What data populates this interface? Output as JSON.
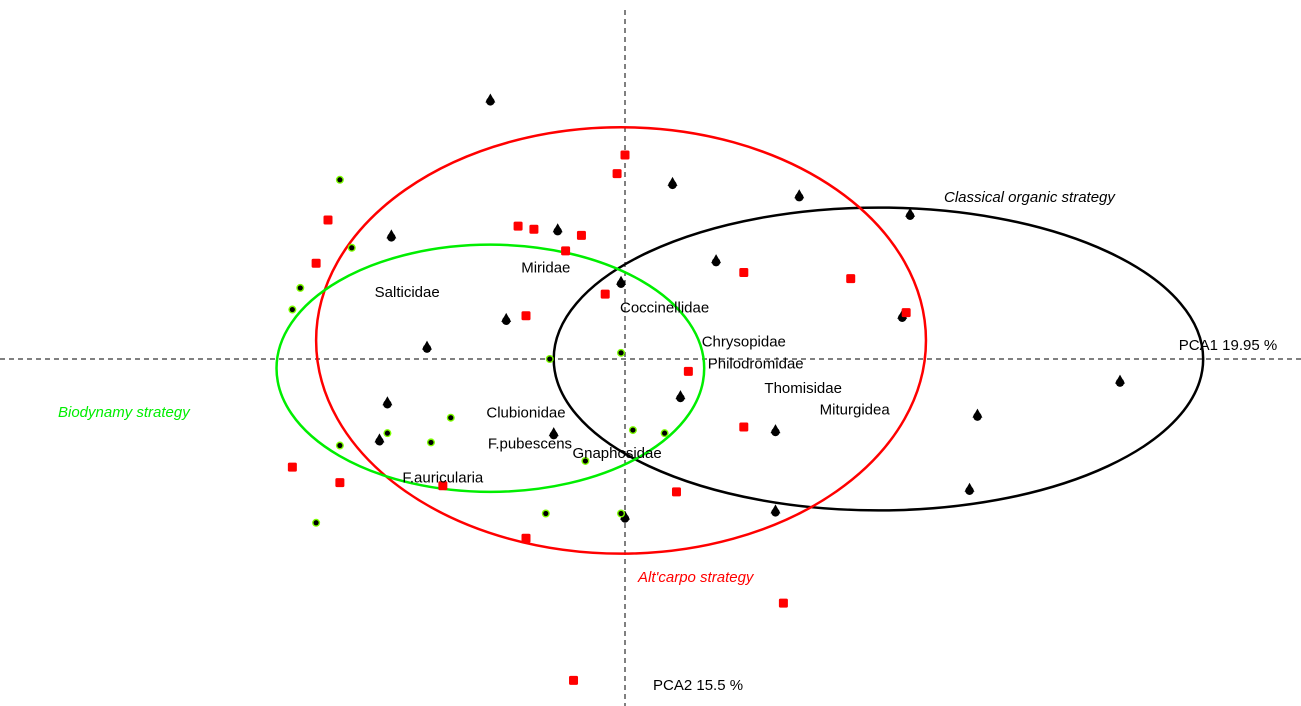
{
  "chart_data": {
    "type": "scatter",
    "title": "",
    "xlabel": "PCA1 19.95 %",
    "ylabel": "PCA2 15.5 %",
    "xlim": [
      -1.4,
      1.45
    ],
    "ylim": [
      -1.2,
      1.35
    ],
    "grid": false,
    "legend": "none",
    "colors": {
      "classical": "#000000",
      "altcarpo": "#ff0000",
      "biodynamy": "#00ee00"
    },
    "groups": [
      {
        "name": "Classical organic strategy",
        "marker": "triangle",
        "color": "#000000",
        "ellipse": {
          "cx": 0.64,
          "cy": 0.0,
          "rx": 0.82,
          "ry": 0.49
        },
        "points": [
          [
            -0.34,
            0.84
          ],
          [
            0.12,
            0.57
          ],
          [
            0.44,
            0.53
          ],
          [
            0.72,
            0.47
          ],
          [
            -0.59,
            0.4
          ],
          [
            -0.17,
            0.42
          ],
          [
            -0.01,
            0.25
          ],
          [
            0.23,
            0.32
          ],
          [
            -0.3,
            0.13
          ],
          [
            -0.5,
            0.04
          ],
          [
            0.7,
            0.14
          ],
          [
            0.14,
            -0.12
          ],
          [
            -0.6,
            -0.14
          ],
          [
            -0.62,
            -0.26
          ],
          [
            0.0,
            -0.51
          ],
          [
            -0.18,
            -0.24
          ],
          [
            0.38,
            -0.23
          ],
          [
            1.25,
            -0.07
          ],
          [
            0.89,
            -0.18
          ],
          [
            0.87,
            -0.42
          ],
          [
            0.38,
            -0.49
          ]
        ]
      },
      {
        "name": "Alt'carpo strategy",
        "marker": "square",
        "color": "#ff0000",
        "ellipse": {
          "cx": -0.01,
          "cy": 0.06,
          "rx": 0.77,
          "ry": 0.69
        },
        "points": [
          [
            -0.75,
            0.45
          ],
          [
            -0.78,
            0.31
          ],
          [
            -0.84,
            -0.35
          ],
          [
            -0.72,
            -0.4
          ],
          [
            -0.27,
            0.43
          ],
          [
            -0.23,
            0.42
          ],
          [
            -0.15,
            0.35
          ],
          [
            -0.11,
            0.4
          ],
          [
            -0.05,
            0.21
          ],
          [
            -0.25,
            0.14
          ],
          [
            -0.02,
            0.6
          ],
          [
            0.0,
            0.66
          ],
          [
            0.16,
            -0.04
          ],
          [
            0.3,
            0.28
          ],
          [
            0.13,
            -0.43
          ],
          [
            0.3,
            -0.22
          ],
          [
            0.4,
            -0.79
          ],
          [
            -0.13,
            -1.04
          ],
          [
            -0.25,
            -0.58
          ],
          [
            -0.46,
            -0.41
          ],
          [
            0.71,
            0.15
          ],
          [
            0.57,
            0.26
          ]
        ]
      },
      {
        "name": "Biodynamy strategy",
        "marker": "circle",
        "color": "#00ee00",
        "ellipse": {
          "cx": -0.34,
          "cy": -0.03,
          "rx": 0.54,
          "ry": 0.4
        },
        "points": [
          [
            -0.72,
            0.58
          ],
          [
            -0.69,
            0.36
          ],
          [
            -0.82,
            0.23
          ],
          [
            -0.84,
            0.16
          ],
          [
            -0.19,
            0.0
          ],
          [
            -0.01,
            0.02
          ],
          [
            -0.44,
            -0.19
          ],
          [
            -0.6,
            -0.24
          ],
          [
            -0.49,
            -0.27
          ],
          [
            -0.72,
            -0.28
          ],
          [
            -0.78,
            -0.53
          ],
          [
            0.02,
            -0.23
          ],
          [
            0.1,
            -0.24
          ],
          [
            -0.1,
            -0.33
          ],
          [
            -0.2,
            -0.5
          ],
          [
            -0.01,
            -0.5
          ]
        ]
      }
    ],
    "annotations": [
      {
        "text": "Salticidae",
        "x": -0.55,
        "y": 0.2
      },
      {
        "text": "Miridae",
        "x": -0.2,
        "y": 0.28
      },
      {
        "text": "Coccinellidae",
        "x": 0.1,
        "y": 0.15
      },
      {
        "text": "Chrysopidae",
        "x": 0.3,
        "y": 0.04
      },
      {
        "text": "Philodromidae",
        "x": 0.33,
        "y": -0.03
      },
      {
        "text": "Thomisidae",
        "x": 0.45,
        "y": -0.11
      },
      {
        "text": "Miturgidea",
        "x": 0.58,
        "y": -0.18
      },
      {
        "text": "Clubionidae",
        "x": -0.25,
        "y": -0.19
      },
      {
        "text": "F.pubescens",
        "x": -0.24,
        "y": -0.29
      },
      {
        "text": "Gnaphosidae",
        "x": -0.02,
        "y": -0.32
      },
      {
        "text": "F.auricularia",
        "x": -0.46,
        "y": -0.4
      }
    ]
  }
}
